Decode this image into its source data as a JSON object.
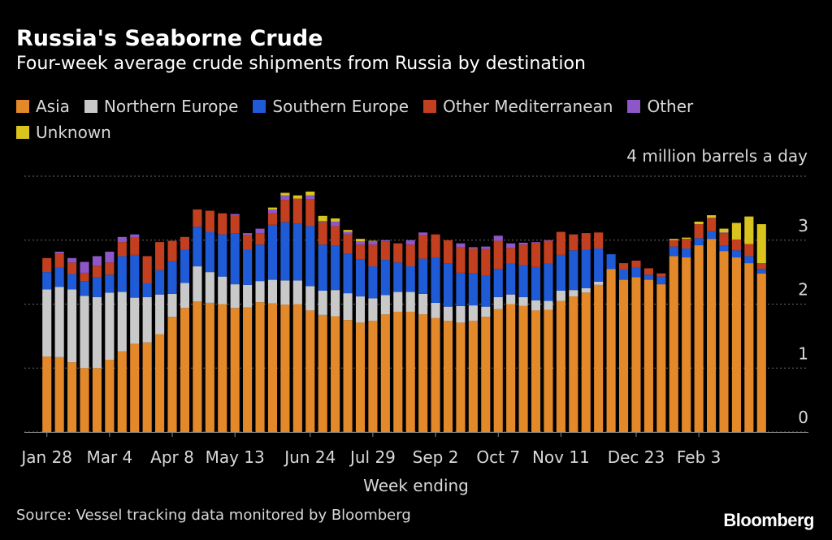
{
  "chart_data": {
    "type": "bar",
    "stacked": true,
    "title": "Russia's Seaborne Crude",
    "subtitle": "Four-week average crude shipments from Russia by destination",
    "unit_label": "4 million barrels a day",
    "xlabel": "Week ending",
    "ylim": [
      0,
      4
    ],
    "yticks": [
      0,
      1,
      2,
      3
    ],
    "x_tick_labels": [
      "Jan 28",
      "Mar 4",
      "Apr 8",
      "May 13",
      "Jun 24",
      "Jul 29",
      "Sep 2",
      "Oct 7",
      "Nov 11",
      "Dec 23",
      "Feb 3"
    ],
    "x_tick_index": [
      0,
      5,
      10,
      15,
      21,
      26,
      31,
      36,
      41,
      47,
      52
    ],
    "grid": true,
    "legend_position": "top-left",
    "source": "Source: Vessel tracking data monitored by Bloomberg",
    "brand": "Bloomberg",
    "series": [
      {
        "name": "Asia",
        "color": "#e4892a",
        "values": [
          1.18,
          1.17,
          1.09,
          1.0,
          1.0,
          1.13,
          1.26,
          1.38,
          1.4,
          1.53,
          1.8,
          1.94,
          2.04,
          2.02,
          2.0,
          1.94,
          1.95,
          2.03,
          2.01,
          1.99,
          2.0,
          1.9,
          1.83,
          1.81,
          1.75,
          1.71,
          1.74,
          1.84,
          1.88,
          1.88,
          1.84,
          1.78,
          1.74,
          1.71,
          1.74,
          1.8,
          1.92,
          2.0,
          1.97,
          1.9,
          1.91,
          2.05,
          2.12,
          2.18,
          2.3,
          2.55,
          2.38,
          2.42,
          2.38,
          2.31,
          2.75,
          2.73,
          2.92,
          3.02,
          2.83,
          2.73,
          2.64,
          2.48
        ]
      },
      {
        "name": "Northern Europe",
        "color": "#c9c9c9",
        "values": [
          1.05,
          1.1,
          1.14,
          1.13,
          1.11,
          1.05,
          0.93,
          0.72,
          0.71,
          0.62,
          0.36,
          0.39,
          0.55,
          0.48,
          0.43,
          0.37,
          0.35,
          0.33,
          0.37,
          0.38,
          0.37,
          0.38,
          0.38,
          0.41,
          0.42,
          0.41,
          0.35,
          0.3,
          0.31,
          0.31,
          0.32,
          0.24,
          0.22,
          0.26,
          0.24,
          0.16,
          0.19,
          0.15,
          0.14,
          0.16,
          0.14,
          0.16,
          0.1,
          0.07,
          0.05,
          0.0,
          0.0,
          0.0,
          0.0,
          0.0,
          0.0,
          0.0,
          0.0,
          0.0,
          0.0,
          0.0,
          0.0,
          0.0
        ]
      },
      {
        "name": "Southern Europe",
        "color": "#1f5bd6",
        "values": [
          0.27,
          0.3,
          0.24,
          0.23,
          0.31,
          0.28,
          0.56,
          0.67,
          0.22,
          0.38,
          0.51,
          0.52,
          0.62,
          0.63,
          0.66,
          0.8,
          0.55,
          0.57,
          0.86,
          0.91,
          0.89,
          0.94,
          0.72,
          0.7,
          0.62,
          0.58,
          0.5,
          0.55,
          0.46,
          0.4,
          0.55,
          0.71,
          0.68,
          0.52,
          0.5,
          0.48,
          0.44,
          0.48,
          0.5,
          0.52,
          0.58,
          0.56,
          0.62,
          0.6,
          0.52,
          0.23,
          0.16,
          0.15,
          0.08,
          0.12,
          0.15,
          0.14,
          0.11,
          0.12,
          0.09,
          0.11,
          0.11,
          0.07
        ]
      },
      {
        "name": "Other Mediterranean",
        "color": "#c24020",
        "values": [
          0.22,
          0.22,
          0.18,
          0.13,
          0.18,
          0.19,
          0.22,
          0.27,
          0.42,
          0.44,
          0.32,
          0.2,
          0.27,
          0.33,
          0.33,
          0.27,
          0.23,
          0.18,
          0.18,
          0.35,
          0.39,
          0.42,
          0.35,
          0.3,
          0.3,
          0.23,
          0.34,
          0.29,
          0.3,
          0.34,
          0.37,
          0.36,
          0.36,
          0.4,
          0.39,
          0.42,
          0.44,
          0.25,
          0.32,
          0.38,
          0.36,
          0.36,
          0.25,
          0.26,
          0.25,
          0.0,
          0.1,
          0.11,
          0.1,
          0.05,
          0.1,
          0.15,
          0.22,
          0.21,
          0.19,
          0.17,
          0.19,
          0.09
        ]
      },
      {
        "name": "Other",
        "color": "#8e57c8",
        "values": [
          0.0,
          0.03,
          0.07,
          0.17,
          0.15,
          0.17,
          0.08,
          0.05,
          0.0,
          0.0,
          0.0,
          0.0,
          0.0,
          0.0,
          0.0,
          0.03,
          0.03,
          0.07,
          0.06,
          0.07,
          0.0,
          0.06,
          0.02,
          0.07,
          0.04,
          0.05,
          0.05,
          0.02,
          0.0,
          0.07,
          0.04,
          0.0,
          0.0,
          0.06,
          0.02,
          0.04,
          0.08,
          0.07,
          0.03,
          0.01,
          0.01,
          0.0,
          0.0,
          0.0,
          0.0,
          0.0,
          0.0,
          0.0,
          0.0,
          0.0,
          0.0,
          0.0,
          0.0,
          0.0,
          0.01,
          0.0,
          0.0,
          0.0
        ]
      },
      {
        "name": "Unknown",
        "color": "#d9c31d",
        "values": [
          0.0,
          0.0,
          0.0,
          0.0,
          0.0,
          0.0,
          0.0,
          0.0,
          0.0,
          0.0,
          0.0,
          0.0,
          0.0,
          0.0,
          0.0,
          0.0,
          0.0,
          0.0,
          0.03,
          0.04,
          0.05,
          0.06,
          0.08,
          0.05,
          0.03,
          0.04,
          0.01,
          0.0,
          0.0,
          0.0,
          0.0,
          0.0,
          0.0,
          0.0,
          0.0,
          0.0,
          0.0,
          0.0,
          0.0,
          0.0,
          0.0,
          0.0,
          0.0,
          0.0,
          0.0,
          0.0,
          0.0,
          0.0,
          0.0,
          0.0,
          0.02,
          0.02,
          0.04,
          0.04,
          0.06,
          0.26,
          0.43,
          0.61
        ]
      }
    ]
  }
}
